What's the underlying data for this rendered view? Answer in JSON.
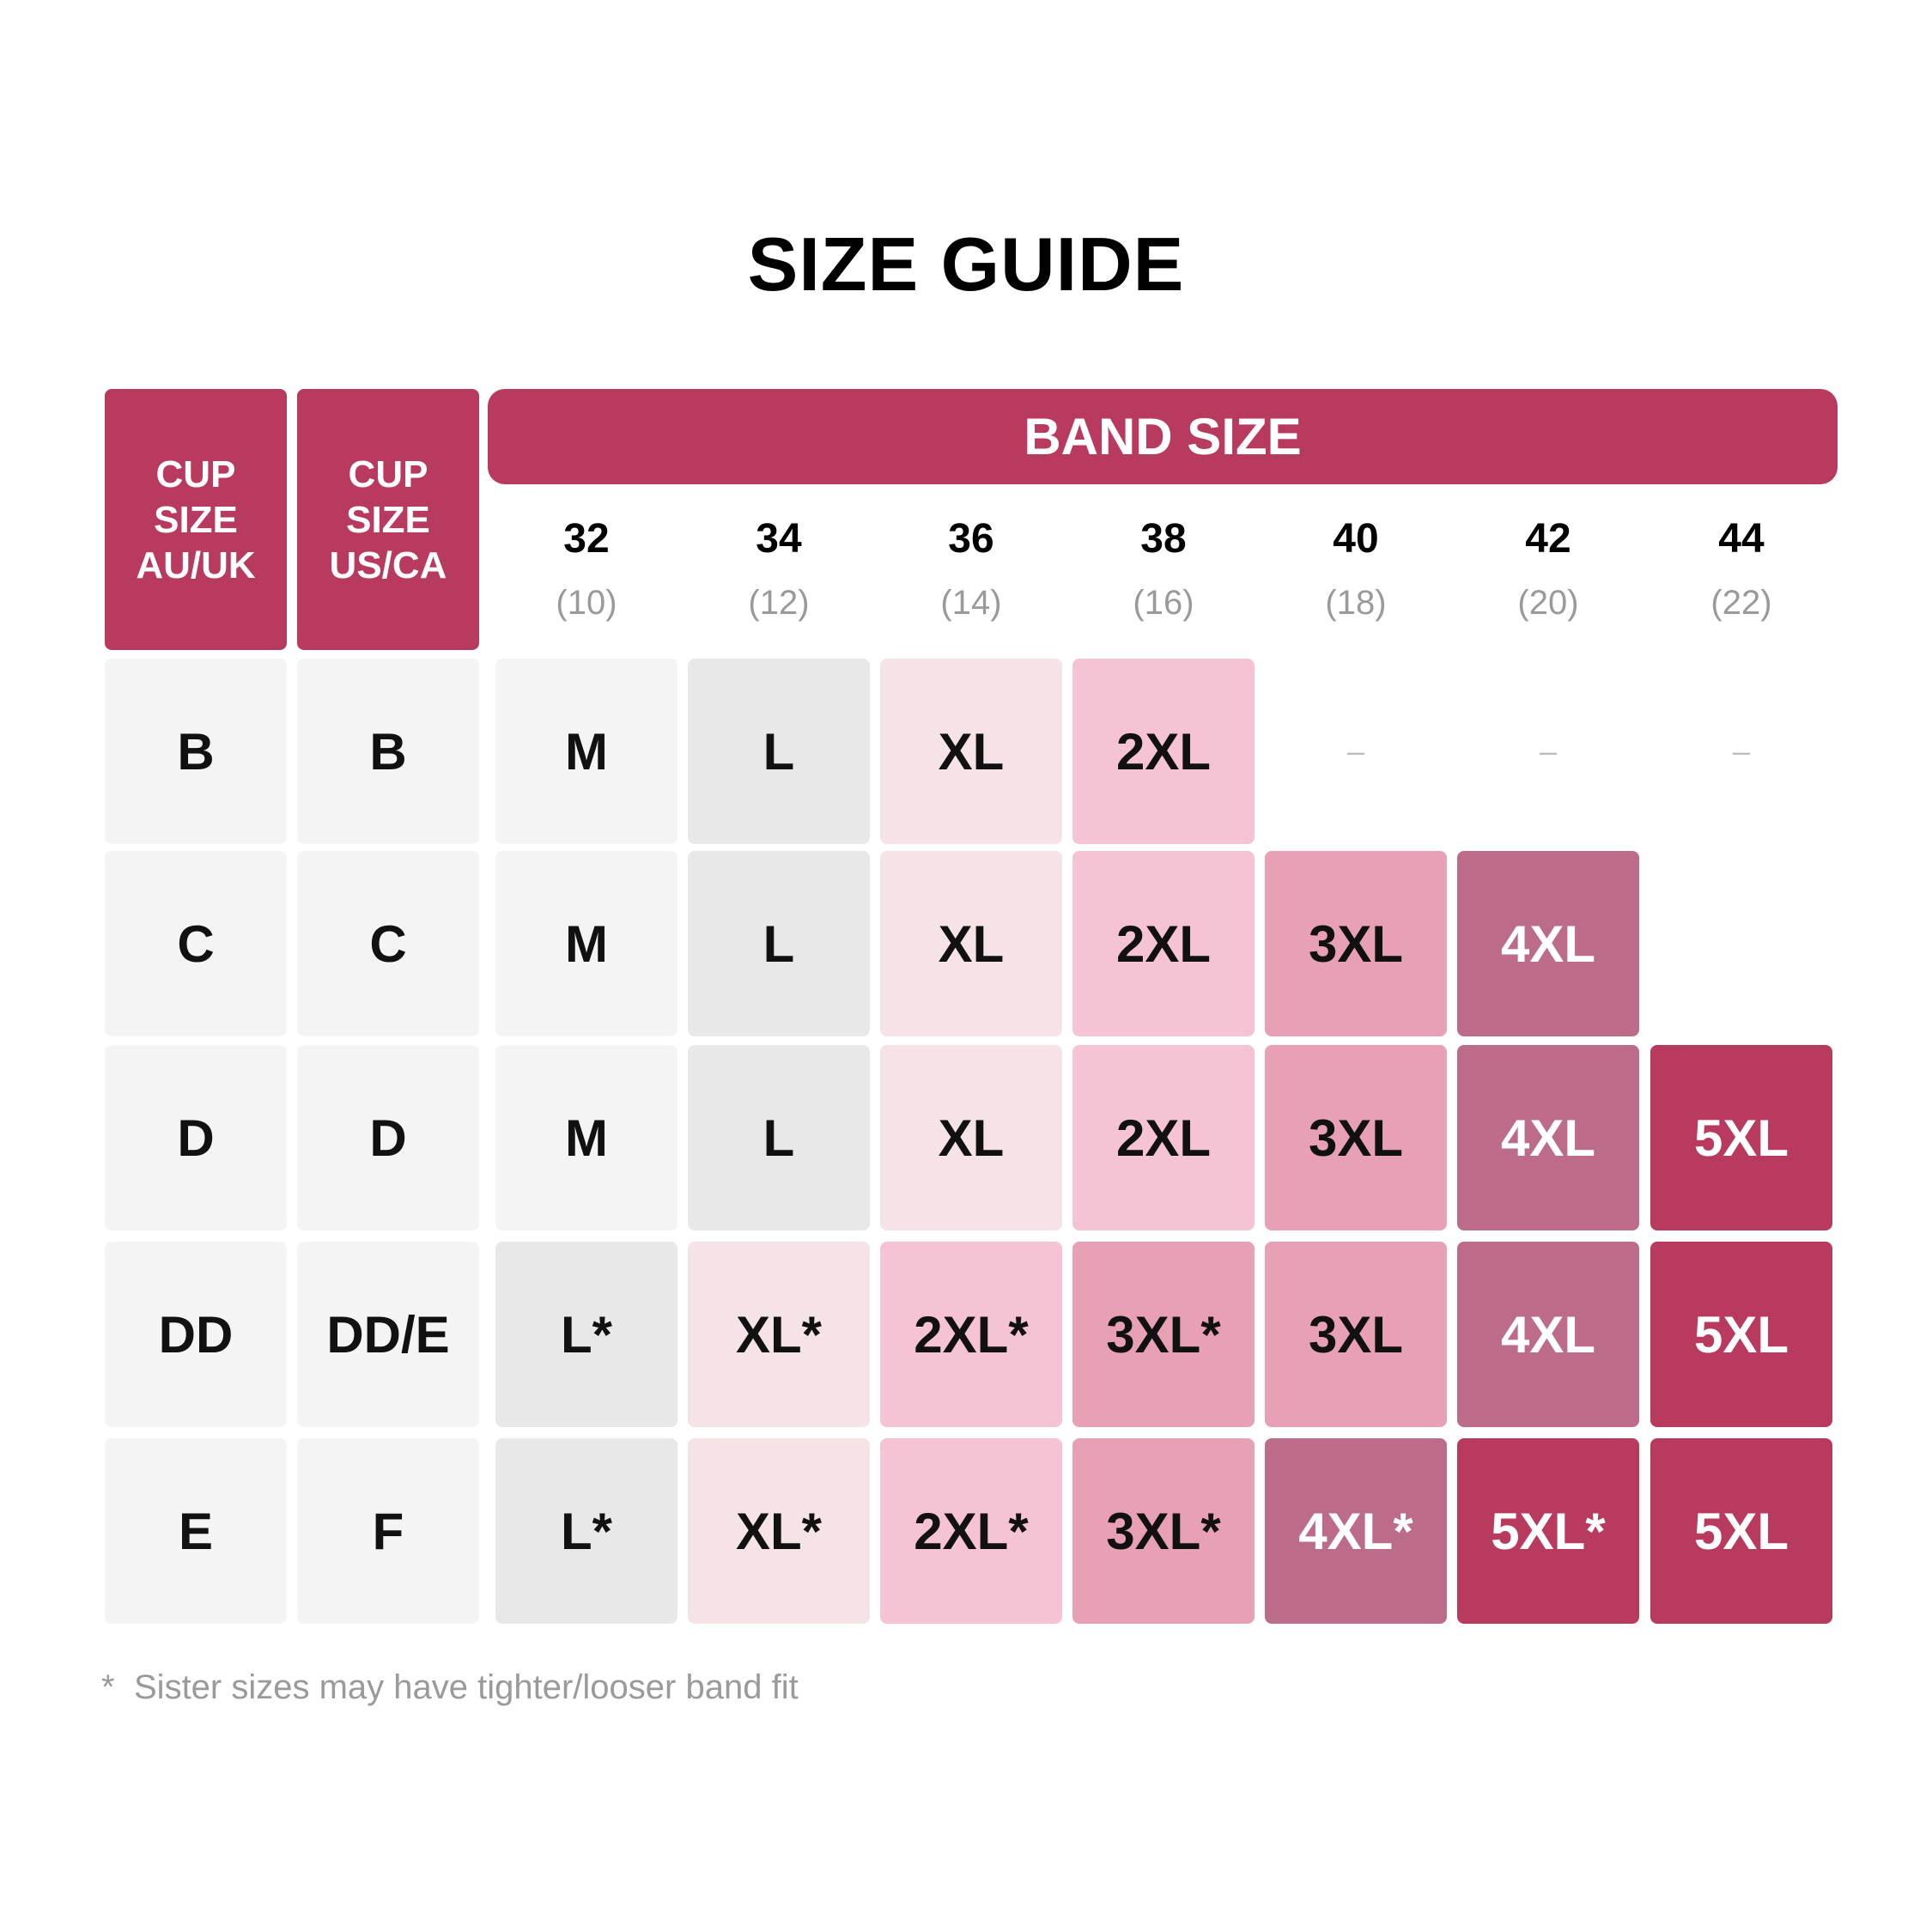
{
  "title": "SIZE GUIDE",
  "headers": {
    "au_uk": [
      "CUP",
      "SIZE",
      "AU/UK"
    ],
    "us_ca": [
      "CUP",
      "SIZE",
      "US/CA"
    ],
    "band": "BAND SIZE"
  },
  "bands": [
    {
      "num": "32",
      "sub": "(10)"
    },
    {
      "num": "34",
      "sub": "(12)"
    },
    {
      "num": "36",
      "sub": "(14)"
    },
    {
      "num": "38",
      "sub": "(16)"
    },
    {
      "num": "40",
      "sub": "(18)"
    },
    {
      "num": "42",
      "sub": "(20)"
    },
    {
      "num": "44",
      "sub": "(22)"
    }
  ],
  "rows": [
    {
      "au": "B",
      "us": "B",
      "sizes": [
        "M",
        "L",
        "XL",
        "2XL",
        "–",
        "–",
        "–"
      ]
    },
    {
      "au": "C",
      "us": "C",
      "sizes": [
        "M",
        "L",
        "XL",
        "2XL",
        "3XL",
        "4XL",
        ""
      ]
    },
    {
      "au": "D",
      "us": "D",
      "sizes": [
        "M",
        "L",
        "XL",
        "2XL",
        "3XL",
        "4XL",
        "5XL"
      ]
    },
    {
      "au": "DD",
      "us": "DD/E",
      "sizes": [
        "L*",
        "XL*",
        "2XL*",
        "3XL*",
        "3XL",
        "4XL",
        "5XL"
      ]
    },
    {
      "au": "E",
      "us": "F",
      "sizes": [
        "L*",
        "XL*",
        "2XL*",
        "3XL*",
        "4XL*",
        "5XL*",
        "5XL"
      ]
    }
  ],
  "size_colors": {
    "M": "#f4f4f4",
    "L": "#e8e8e8",
    "XL": "#f5e3e6",
    "2XL": "#f5c3d3",
    "3XL": "#e8a0b4",
    "4XL": "#bc6b8a",
    "5XL": "#b83a5e"
  },
  "cup_cell_color": "#f4f4f4",
  "footnote": {
    "star": "*",
    "text": "Sister sizes may have tighter/looser band fit"
  }
}
